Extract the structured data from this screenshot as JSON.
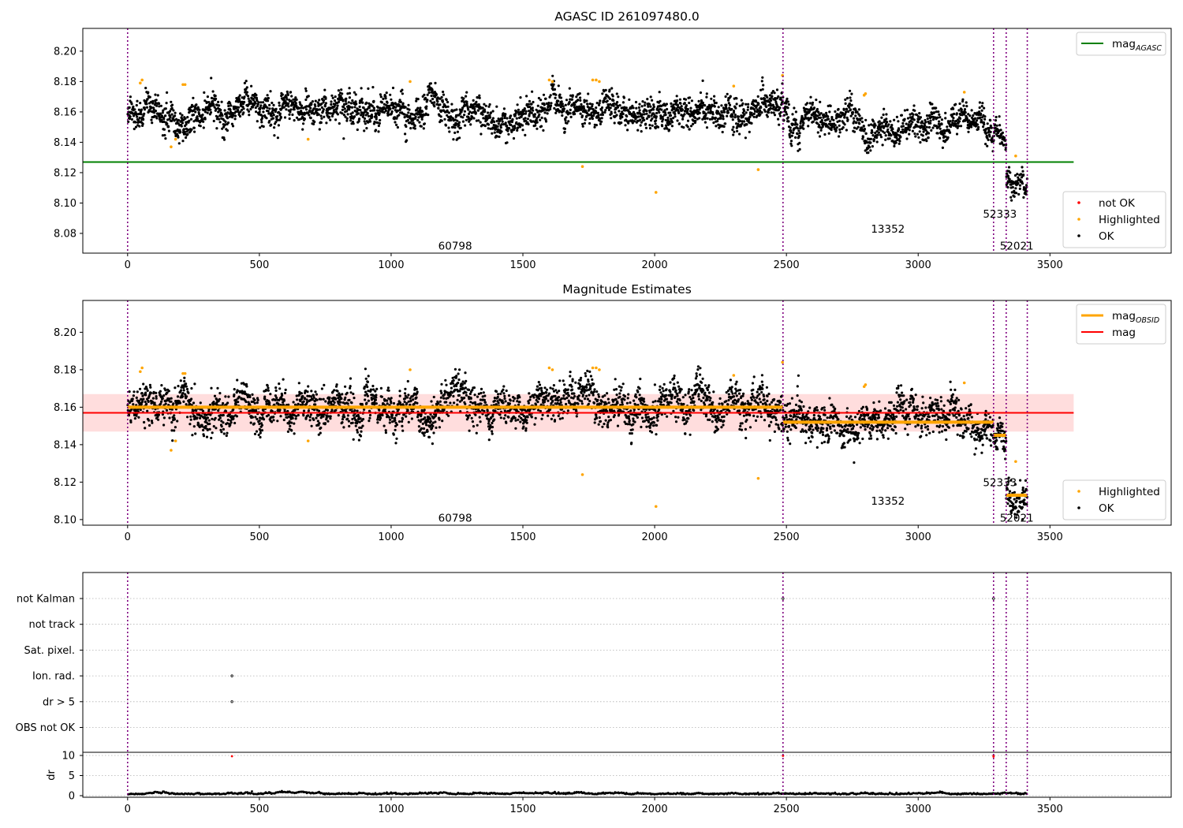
{
  "chart_data": [
    {
      "type": "scatter",
      "title": "AGASC ID 261097480.0",
      "xlim": [
        -170,
        3960
      ],
      "ylim": [
        8.067,
        8.215
      ],
      "xticks": [
        0,
        500,
        1000,
        1500,
        2000,
        2500,
        3000,
        3500
      ],
      "yticks": [
        8.08,
        8.1,
        8.12,
        8.14,
        8.16,
        8.18,
        8.2
      ],
      "vlines": [
        0,
        2487,
        3286,
        3334,
        3414
      ],
      "obsid_labels": [
        {
          "text": "60798",
          "x": 1243,
          "y": 8.072
        },
        {
          "text": "13352",
          "x": 2885,
          "y": 8.083
        },
        {
          "text": "52333",
          "x": 3310,
          "y": 8.093
        },
        {
          "text": "52021",
          "x": 3374,
          "y": 8.072
        }
      ],
      "hline": {
        "name": "mag",
        "sub": "AGASC",
        "y": 8.127,
        "x": [
          -170,
          3590
        ],
        "color": "#008000"
      },
      "legends": [
        {
          "position": "upper right",
          "entries": [
            {
              "label": "mag",
              "sub": "AGASC",
              "kind": "line",
              "color": "#008000"
            }
          ]
        },
        {
          "position": "lower right",
          "entries": [
            {
              "label": "not OK",
              "kind": "dot",
              "color": "#ff0000"
            },
            {
              "label": "Highlighted",
              "kind": "dot",
              "color": "#ffa500"
            },
            {
              "label": "OK",
              "kind": "dot",
              "color": "#000000"
            }
          ]
        }
      ],
      "segments": [
        {
          "x": [
            0,
            2487
          ],
          "level": 8.16,
          "spread": 0.0062
        },
        {
          "x": [
            2487,
            3286
          ],
          "level": 8.152,
          "spread": 0.0058
        },
        {
          "x": [
            3286,
            3334
          ],
          "level": 8.145,
          "spread": 0.0045
        },
        {
          "x": [
            3334,
            3414
          ],
          "level": 8.113,
          "spread": 0.0055
        }
      ],
      "highlighted_points": [
        [
          48,
          8.179
        ],
        [
          55,
          8.181
        ],
        [
          165,
          8.137
        ],
        [
          182,
          8.142
        ],
        [
          210,
          8.178
        ],
        [
          218,
          8.178
        ],
        [
          685,
          8.142
        ],
        [
          1072,
          8.18
        ],
        [
          1600,
          8.181
        ],
        [
          1612,
          8.18
        ],
        [
          1726,
          8.124
        ],
        [
          1765,
          8.181
        ],
        [
          1778,
          8.181
        ],
        [
          1790,
          8.18
        ],
        [
          2005,
          8.107
        ],
        [
          2300,
          8.177
        ],
        [
          2393,
          8.122
        ],
        [
          2485,
          8.184
        ],
        [
          2795,
          8.171
        ],
        [
          2800,
          8.172
        ],
        [
          3175,
          8.173
        ],
        [
          3370,
          8.131
        ]
      ]
    },
    {
      "type": "scatter",
      "title": "Magnitude Estimates",
      "xlim": [
        -170,
        3960
      ],
      "ylim": [
        8.097,
        8.217
      ],
      "xticks": [
        0,
        500,
        1000,
        1500,
        2000,
        2500,
        3000,
        3500
      ],
      "yticks": [
        8.1,
        8.12,
        8.14,
        8.16,
        8.18,
        8.2
      ],
      "vlines": [
        0,
        2487,
        3286,
        3334,
        3414
      ],
      "obsid_labels": [
        {
          "text": "60798",
          "x": 1243,
          "y": 8.101
        },
        {
          "text": "13352",
          "x": 2885,
          "y": 8.11
        },
        {
          "text": "52333",
          "x": 3310,
          "y": 8.12
        },
        {
          "text": "52021",
          "x": 3374,
          "y": 8.101
        }
      ],
      "mag": {
        "name": "mag",
        "y": 8.157,
        "band": [
          8.147,
          8.167
        ],
        "x": [
          -170,
          3590
        ],
        "color": "#ff0000",
        "band_color": "#ffdddd"
      },
      "obsid_mags": [
        {
          "x": [
            0,
            2487
          ],
          "y": 8.16
        },
        {
          "x": [
            2487,
            3286
          ],
          "y": 8.152
        },
        {
          "x": [
            3286,
            3334
          ],
          "y": 8.145
        },
        {
          "x": [
            3334,
            3414
          ],
          "y": 8.113
        }
      ],
      "legends": [
        {
          "position": "upper right",
          "entries": [
            {
              "label": "mag",
              "sub": "OBSID",
              "kind": "line",
              "color": "#ffa500"
            },
            {
              "label": "mag",
              "kind": "line",
              "color": "#ff0000"
            }
          ]
        },
        {
          "position": "lower right",
          "entries": [
            {
              "label": "Highlighted",
              "kind": "dot",
              "color": "#ffa500"
            },
            {
              "label": "OK",
              "kind": "dot",
              "color": "#000000"
            }
          ]
        }
      ],
      "segments": [
        {
          "x": [
            0,
            2487
          ],
          "level": 8.16,
          "spread": 0.0062
        },
        {
          "x": [
            2487,
            3286
          ],
          "level": 8.152,
          "spread": 0.0058
        },
        {
          "x": [
            3286,
            3334
          ],
          "level": 8.145,
          "spread": 0.0045
        },
        {
          "x": [
            3334,
            3414
          ],
          "level": 8.113,
          "spread": 0.0055
        }
      ],
      "highlighted_points": [
        [
          48,
          8.179
        ],
        [
          55,
          8.181
        ],
        [
          165,
          8.137
        ],
        [
          182,
          8.142
        ],
        [
          210,
          8.178
        ],
        [
          218,
          8.178
        ],
        [
          685,
          8.142
        ],
        [
          1072,
          8.18
        ],
        [
          1600,
          8.181
        ],
        [
          1612,
          8.18
        ],
        [
          1726,
          8.124
        ],
        [
          1765,
          8.181
        ],
        [
          1778,
          8.181
        ],
        [
          1790,
          8.18
        ],
        [
          2005,
          8.107
        ],
        [
          2300,
          8.177
        ],
        [
          2393,
          8.122
        ],
        [
          2485,
          8.184
        ],
        [
          2795,
          8.171
        ],
        [
          2800,
          8.172
        ],
        [
          3175,
          8.173
        ],
        [
          3370,
          8.131
        ]
      ]
    },
    {
      "type": "scatter",
      "title": "",
      "xlim": [
        -170,
        3960
      ],
      "xticks": [
        0,
        500,
        1000,
        1500,
        2000,
        2500,
        3000,
        3500
      ],
      "vlines": [
        0,
        2487,
        3286,
        3334,
        3414
      ],
      "flag_rows": [
        "not Kalman",
        "not track",
        "Sat. pixel.",
        "Ion. rad.",
        "dr > 5",
        "OBS not OK"
      ],
      "flag_points": [
        {
          "row": "not Kalman",
          "x": 2487
        },
        {
          "row": "not Kalman",
          "x": 3286
        },
        {
          "row": "Ion. rad.",
          "x": 396
        },
        {
          "row": "dr > 5",
          "x": 396
        }
      ],
      "dr": {
        "ylabel": "dr",
        "ylim": [
          0,
          10.2
        ],
        "yticks": [
          0,
          5,
          10
        ],
        "spike_points": [
          [
            396,
            9.8
          ],
          [
            2487,
            9.9
          ],
          [
            2487,
            10.0
          ],
          [
            3286,
            9.7
          ],
          [
            3286,
            10.0
          ]
        ],
        "baseline": 0.3
      }
    }
  ]
}
